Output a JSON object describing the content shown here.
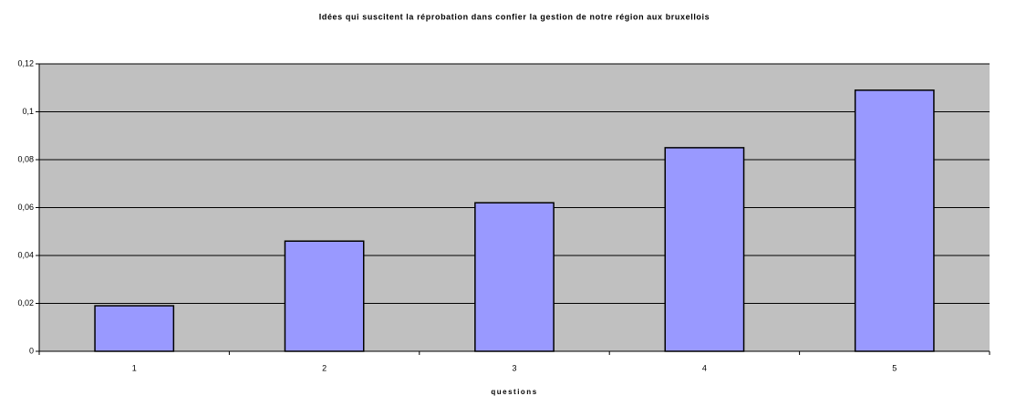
{
  "chart_data": {
    "type": "bar",
    "title": "Idées qui suscitent la réprobation dans confier la gestion de notre région aux bruxellois",
    "x_label": "questions",
    "categories": [
      "1",
      "2",
      "3",
      "4",
      "5"
    ],
    "values": [
      0.019,
      0.046,
      0.062,
      0.085,
      0.109
    ],
    "color": "#9999ff",
    "ylim": [
      0,
      0.12
    ],
    "yticks": [
      0,
      {
        "value": 0.02,
        "label": "0,02"
      },
      {
        "value": 0.04,
        "label": "0,04"
      },
      {
        "value": 0.06,
        "label": "0,06"
      },
      {
        "value": 0.08,
        "label": "0,08"
      },
      {
        "value": 0.1,
        "label": "0,1"
      },
      {
        "value": 0.12,
        "label": "0,12"
      }
    ],
    "grid": true
  }
}
